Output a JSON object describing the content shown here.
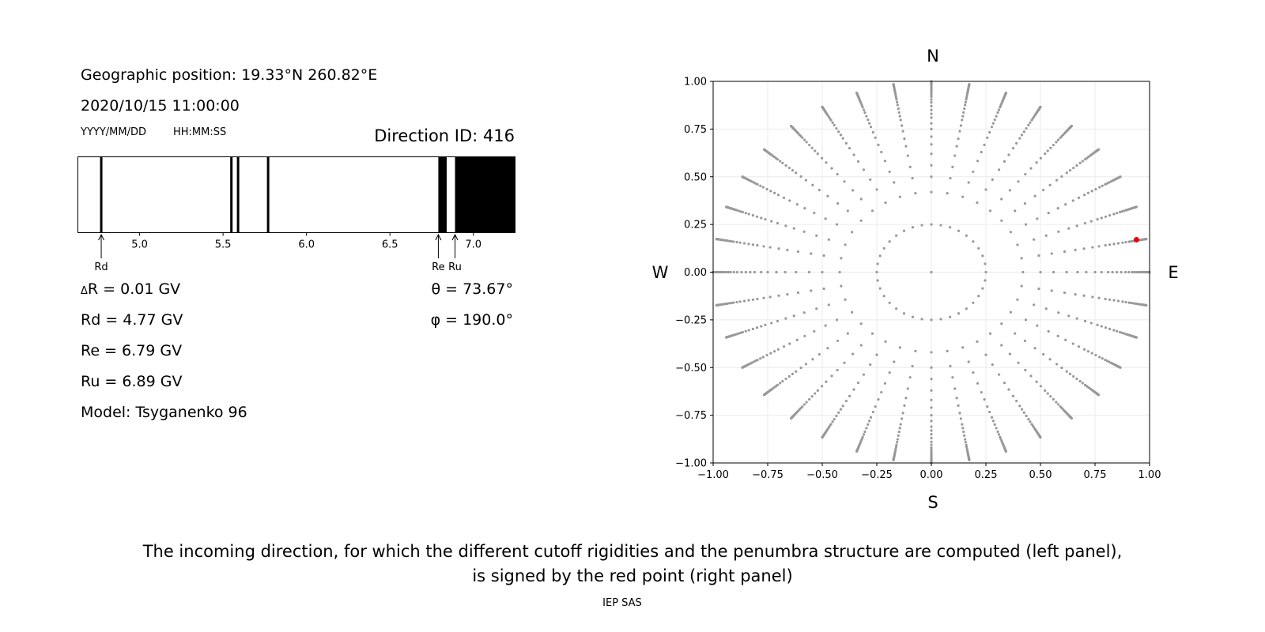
{
  "left_panel": {
    "geo_position": "Geographic position: 19.33°N 260.82°E",
    "datetime": "2020/10/15 11:00:00",
    "date_format": "YYYY/MM/DD",
    "time_format": "HH:MM:SS",
    "direction_id": "Direction ID: 416",
    "delta_r_symbol": "Δ",
    "delta_r_text": "R = 0.01 GV",
    "rd": "Rd = 4.77 GV",
    "re": "Re = 6.79 GV",
    "ru": "Ru = 6.89 GV",
    "model": "Model: Tsyganenko 96",
    "theta": "θ = 73.67°",
    "phi": "φ = 190.0°"
  },
  "chart_data": [
    {
      "type": "penumbra",
      "x_range": [
        4.63,
        7.25
      ],
      "x_ticks": [
        "5.0",
        "5.5",
        "6.0",
        "6.5",
        "7.0"
      ],
      "x_tick_values": [
        5.0,
        5.5,
        6.0,
        6.5,
        7.0
      ],
      "forbidden_lines": [
        4.77,
        5.55,
        5.59,
        5.77
      ],
      "forbidden_bands": [
        [
          6.79,
          6.84
        ],
        [
          6.89,
          7.25
        ]
      ],
      "markers": [
        {
          "label": "Rd",
          "value": 4.77
        },
        {
          "label": "Re",
          "value": 6.79
        },
        {
          "label": "Ru",
          "value": 6.89
        }
      ]
    },
    {
      "type": "scatter",
      "xlim": [
        -1.0,
        1.0
      ],
      "ylim": [
        -1.0,
        1.0
      ],
      "x_ticks": [
        "−1.00",
        "−0.75",
        "−0.50",
        "−0.25",
        "0.00",
        "0.25",
        "0.50",
        "0.75",
        "1.00"
      ],
      "y_ticks": [
        "−1.00",
        "−0.75",
        "−0.50",
        "−0.25",
        "0.00",
        "0.25",
        "0.50",
        "0.75",
        "1.00"
      ],
      "tick_values": [
        -1.0,
        -0.75,
        -0.5,
        -0.25,
        0.0,
        0.25,
        0.5,
        0.75,
        1.0
      ],
      "grid": true,
      "compass": {
        "north": "N",
        "south": "S",
        "west": "W",
        "east": "E"
      },
      "grid_points": {
        "azimuths_deg": [
          0,
          10,
          20,
          30,
          40,
          50,
          60,
          70,
          80,
          90,
          100,
          110,
          120,
          130,
          140,
          150,
          160,
          170,
          180,
          190,
          200,
          210,
          220,
          230,
          240,
          250,
          260,
          270,
          280,
          290,
          300,
          310,
          320,
          330,
          340,
          350
        ],
        "ring_radii": [
          0.0,
          0.25,
          0.42,
          0.5,
          0.56,
          0.62,
          0.67,
          0.71,
          0.75,
          0.78,
          0.81,
          0.83,
          0.85,
          0.87,
          0.89,
          0.905,
          0.92,
          0.93,
          0.94,
          0.95,
          0.957,
          0.964,
          0.97,
          0.976,
          0.981,
          0.985,
          0.989,
          0.992,
          0.995,
          0.997,
          0.999,
          1.0
        ],
        "color": "#999999"
      },
      "selected_point": {
        "x": 0.94,
        "y": 0.17,
        "color": "#e8000b"
      }
    }
  ],
  "caption": {
    "line1": "The incoming direction, for which the different cutoff rigidities and the penumbra structure are computed (left panel),",
    "line2": "is signed by the red point (right panel)"
  },
  "footer": "IEP SAS"
}
